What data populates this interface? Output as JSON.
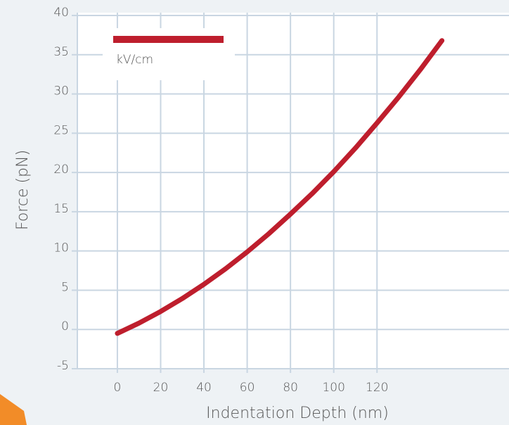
{
  "chart_data": {
    "type": "line",
    "x_label": "Indentation Depth (nm)",
    "y_label": "Force (pN)",
    "x": [
      0,
      10,
      20,
      30,
      40,
      50,
      60,
      70,
      80,
      90,
      100,
      110,
      120,
      130,
      140,
      150
    ],
    "series": [
      {
        "name": "kV/cm",
        "color": "#be1e2d",
        "values": [
          -0.5,
          0.81,
          2.29,
          3.94,
          5.75,
          7.73,
          9.88,
          12.2,
          14.7,
          17.3,
          20.1,
          23.1,
          26.3,
          29.6,
          33.1,
          36.8
        ]
      }
    ],
    "xlim": [
      -18.5,
      181
    ],
    "xticks": [
      0,
      20,
      40,
      60,
      80,
      100,
      120
    ],
    "ylim": [
      -5,
      40
    ],
    "yticks": [
      -5,
      0,
      5,
      10,
      15,
      20,
      25,
      30,
      35,
      40
    ],
    "grid": true,
    "legend": "upper left"
  }
}
